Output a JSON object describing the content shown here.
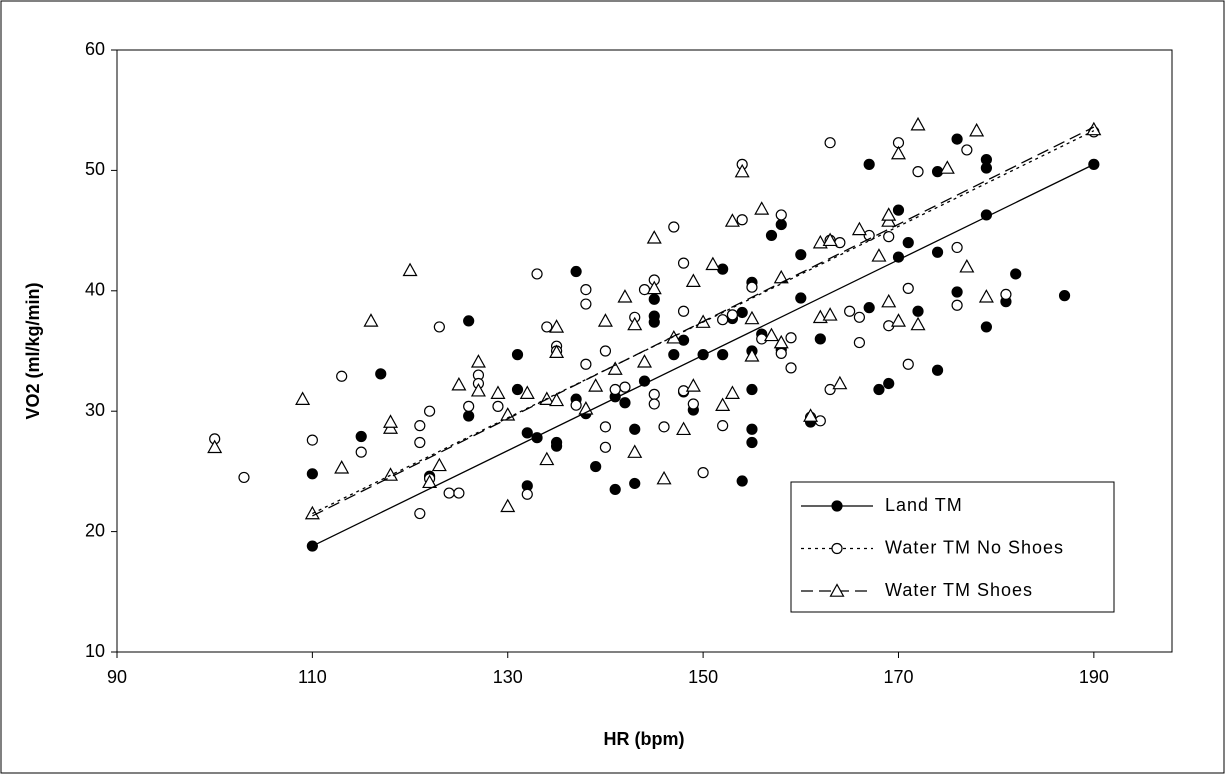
{
  "chart_data": {
    "type": "scatter",
    "x_label": "HR (bpm)",
    "y_label": "VO2 (ml/kg/min)",
    "xlim": [
      90,
      198
    ],
    "ylim": [
      10,
      60
    ],
    "xticks": [
      90,
      110,
      130,
      150,
      170,
      190
    ],
    "yticks": [
      10,
      20,
      30,
      40,
      50,
      60
    ],
    "grid": false,
    "legend": "lower-right",
    "series": [
      {
        "name": "Land TM",
        "color": "#000000",
        "marker": "filled-circle",
        "dash": "solid",
        "x": [
          110,
          110,
          115,
          117,
          122,
          126,
          126,
          131,
          131,
          132,
          132,
          133,
          135,
          135,
          137,
          137,
          138,
          139,
          141,
          141,
          142,
          143,
          143,
          144,
          145,
          145,
          145,
          147,
          148,
          148,
          149,
          150,
          152,
          152,
          153,
          154,
          154,
          155,
          155,
          155,
          155,
          155,
          156,
          157,
          158,
          158,
          160,
          160,
          161,
          162,
          167,
          167,
          168,
          169,
          170,
          170,
          171,
          172,
          174,
          174,
          174,
          176,
          176,
          179,
          179,
          179,
          179,
          181,
          182,
          187,
          190
        ],
        "values": [
          18.8,
          24.8,
          27.9,
          33.1,
          24.6,
          29.6,
          37.5,
          31.8,
          34.7,
          23.8,
          28.2,
          27.8,
          27.1,
          27.4,
          41.6,
          31.0,
          29.8,
          25.4,
          23.5,
          31.2,
          30.7,
          28.5,
          24.0,
          32.5,
          39.3,
          37.9,
          37.4,
          34.7,
          35.9,
          31.6,
          30.1,
          34.7,
          41.8,
          34.7,
          37.7,
          24.2,
          38.2,
          31.8,
          27.4,
          40.7,
          28.5,
          35.0,
          36.4,
          44.6,
          45.5,
          35.1,
          43.0,
          39.4,
          29.1,
          36.0,
          50.5,
          38.6,
          31.8,
          32.3,
          42.8,
          46.7,
          44.0,
          38.3,
          49.9,
          43.2,
          33.4,
          39.9,
          52.6,
          50.9,
          50.2,
          46.3,
          37.0,
          39.1,
          41.4,
          39.6,
          50.5
        ],
        "trendline": {
          "x": [
            110,
            190
          ],
          "values": [
            18.8,
            50.5
          ]
        }
      },
      {
        "name": "Water TM No Shoes",
        "color": "#000000",
        "marker": "circle",
        "dash": "dotted",
        "x": [
          100,
          103,
          110,
          113,
          115,
          121,
          121,
          121,
          122,
          122,
          123,
          124,
          125,
          126,
          127,
          127,
          129,
          133,
          134,
          135,
          135,
          132,
          137,
          138,
          138,
          138,
          140,
          140,
          140,
          141,
          142,
          143,
          144,
          145,
          145,
          145,
          146,
          147,
          148,
          148,
          148,
          149,
          150,
          152,
          152,
          153,
          154,
          154,
          155,
          156,
          158,
          158,
          159,
          159,
          161,
          162,
          163,
          163,
          163,
          164,
          165,
          166,
          166,
          167,
          169,
          169,
          170,
          171,
          171,
          172,
          176,
          176,
          177,
          181,
          190
        ],
        "values": [
          27.7,
          24.5,
          27.6,
          32.9,
          26.6,
          21.5,
          27.4,
          28.8,
          30.0,
          24.4,
          37.0,
          23.2,
          23.2,
          30.4,
          33.0,
          32.3,
          30.4,
          41.4,
          37.0,
          35.4,
          35.0,
          23.1,
          30.5,
          33.9,
          40.1,
          38.9,
          35.0,
          28.7,
          27.0,
          31.8,
          32.0,
          37.8,
          40.1,
          40.9,
          31.4,
          30.6,
          28.7,
          45.3,
          42.3,
          38.3,
          31.7,
          30.6,
          24.9,
          28.8,
          37.6,
          38.0,
          45.9,
          50.5,
          40.3,
          36.0,
          46.3,
          34.8,
          36.1,
          33.6,
          29.5,
          29.2,
          31.8,
          52.3,
          44.2,
          44.0,
          38.3,
          35.7,
          37.8,
          44.6,
          44.5,
          37.1,
          52.3,
          40.2,
          33.9,
          49.9,
          43.6,
          38.8,
          51.7,
          39.7,
          53.2
        ],
        "trendline": {
          "x": [
            110,
            190
          ],
          "values": [
            21.5,
            53.3
          ]
        }
      },
      {
        "name": "Water TM Shoes",
        "color": "#000000",
        "marker": "triangle",
        "dash": "dashed",
        "x": [
          100,
          109,
          110,
          113,
          116,
          118,
          118,
          118,
          120,
          122,
          123,
          125,
          127,
          127,
          129,
          130,
          130,
          132,
          134,
          134,
          135,
          135,
          135,
          138,
          139,
          140,
          141,
          142,
          143,
          143,
          144,
          145,
          145,
          146,
          147,
          148,
          149,
          149,
          150,
          151,
          152,
          153,
          153,
          154,
          155,
          155,
          156,
          157,
          158,
          158,
          161,
          162,
          162,
          163,
          163,
          164,
          166,
          168,
          169,
          169,
          169,
          170,
          170,
          172,
          172,
          175,
          177,
          178,
          179,
          190
        ],
        "values": [
          27.0,
          31.0,
          21.5,
          25.3,
          37.5,
          28.6,
          29.1,
          24.7,
          41.7,
          24.1,
          25.5,
          32.2,
          34.1,
          31.7,
          31.5,
          22.1,
          29.7,
          31.5,
          26.0,
          31.0,
          37.0,
          34.9,
          30.9,
          30.2,
          32.1,
          37.5,
          33.5,
          39.5,
          26.6,
          37.2,
          34.1,
          44.4,
          40.2,
          24.4,
          36.1,
          28.5,
          40.8,
          32.1,
          37.4,
          42.2,
          30.5,
          45.8,
          31.5,
          49.9,
          34.6,
          37.7,
          46.8,
          36.3,
          41.1,
          35.7,
          29.6,
          44.0,
          37.8,
          38.0,
          44.2,
          32.3,
          45.1,
          42.9,
          39.1,
          45.8,
          46.3,
          51.4,
          37.5,
          53.8,
          37.2,
          50.2,
          42.0,
          53.3,
          39.5,
          53.4
        ],
        "trendline": {
          "x": [
            110,
            190
          ],
          "values": [
            21.3,
            53.6
          ]
        }
      }
    ]
  }
}
